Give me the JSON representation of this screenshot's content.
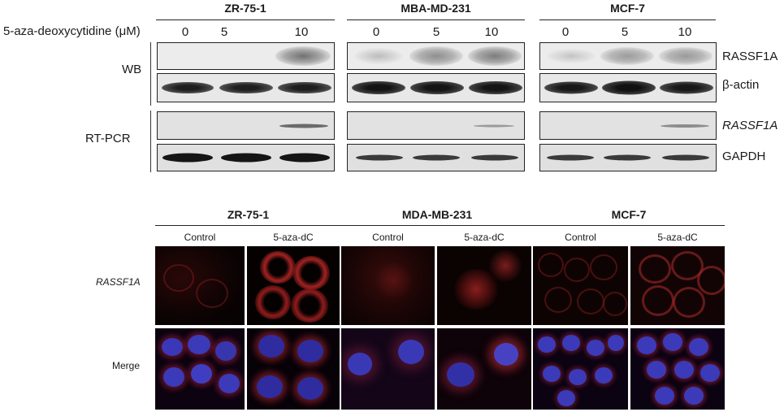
{
  "top": {
    "cell_lines": [
      "ZR-75-1",
      "MBA-MD-231",
      "MCF-7"
    ],
    "treatment_label": "5-aza-deoxycytidine (μM)",
    "doses": [
      "0",
      "5",
      "10"
    ],
    "assays": [
      "WB",
      "RT-PCR"
    ],
    "rows": [
      "RASSF1A",
      "β-actin",
      "RASSF1A",
      "GAPDH"
    ]
  },
  "bottom": {
    "cell_lines": [
      "ZR-75-1",
      "MDA-MB-231",
      "MCF-7"
    ],
    "conditions": [
      "Control",
      "5-aza-dC"
    ],
    "rows": [
      "RASSF1A",
      "Merge"
    ]
  },
  "colors": {
    "blot_bg": "#ececec",
    "band": "#2e2e2e",
    "red_stain": "#b8252a",
    "nucleus_blue": "#3b3ab8"
  }
}
